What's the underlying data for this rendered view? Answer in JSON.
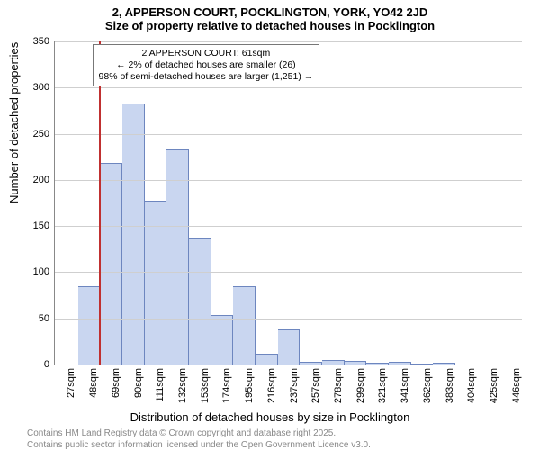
{
  "title": "2, APPERSON COURT, POCKLINGTON, YORK, YO42 2JD",
  "subtitle": "Size of property relative to detached houses in Pocklington",
  "ylabel": "Number of detached properties",
  "xlabel": "Distribution of detached houses by size in Pocklington",
  "chart": {
    "type": "histogram",
    "background_color": "#ffffff",
    "grid_color": "#cfcfcf",
    "bar_fill": "#c9d6f0",
    "bar_edge": "rgba(70,100,170,0.7)",
    "marker_color": "#c03030",
    "ylim": [
      0,
      350
    ],
    "ytick_step": 50,
    "yticks": [
      0,
      50,
      100,
      150,
      200,
      250,
      300,
      350
    ],
    "categories": [
      "27sqm",
      "48sqm",
      "69sqm",
      "90sqm",
      "111sqm",
      "132sqm",
      "153sqm",
      "174sqm",
      "195sqm",
      "216sqm",
      "237sqm",
      "257sqm",
      "278sqm",
      "299sqm",
      "321sqm",
      "341sqm",
      "362sqm",
      "383sqm",
      "404sqm",
      "425sqm",
      "446sqm"
    ],
    "values": [
      0,
      85,
      218,
      283,
      177,
      233,
      137,
      54,
      85,
      12,
      38,
      3,
      5,
      4,
      2,
      3,
      1,
      2,
      0,
      0,
      0
    ],
    "marker_bin_index": 2,
    "marker_fraction_within_bin": 0.0,
    "title_fontsize": 13,
    "label_fontsize": 13,
    "tick_fontsize": 11
  },
  "annotation": {
    "line1": "2 APPERSON COURT: 61sqm",
    "line2": "← 2% of detached houses are smaller (26)",
    "line3": "98% of semi-detached houses are larger (1,251) →"
  },
  "footnote": {
    "line1": "Contains HM Land Registry data © Crown copyright and database right 2025.",
    "line2": "Contains public sector information licensed under the Open Government Licence v3.0."
  }
}
